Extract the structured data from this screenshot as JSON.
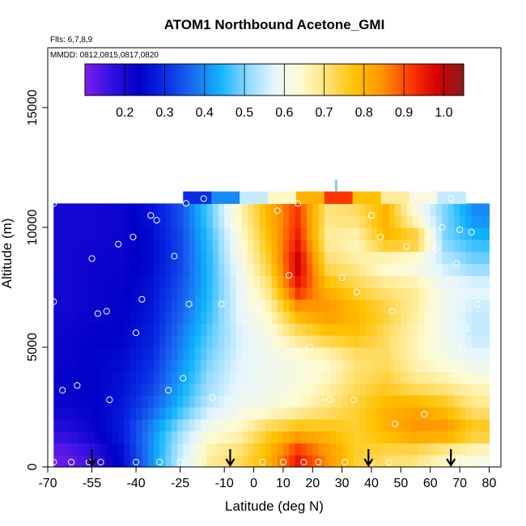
{
  "chart_data": {
    "type": "heatmap",
    "title": "ATOM1 Northbound Acetone_GMI",
    "flights_label": "Flts: 6,7,8,9",
    "dates_label": "MMDD: 0812,0815,0817,0820",
    "xlabel": "Latitude (deg N)",
    "ylabel": "Altitude (m)",
    "xlim": [
      -70,
      84
    ],
    "ylim": [
      0,
      17500
    ],
    "x_ticks": [
      {
        "v": -70,
        "label": "-70"
      },
      {
        "v": -55,
        "label": "-55"
      },
      {
        "v": -40,
        "label": "-40"
      },
      {
        "v": -25,
        "label": "-25"
      },
      {
        "v": -10,
        "label": "-10"
      },
      {
        "v": 0,
        "label": "0"
      },
      {
        "v": 10,
        "label": "10"
      },
      {
        "v": 20,
        "label": "20"
      },
      {
        "v": 30,
        "label": "30"
      },
      {
        "v": 40,
        "label": "40"
      },
      {
        "v": 50,
        "label": "50"
      },
      {
        "v": 60,
        "label": "60"
      },
      {
        "v": 70,
        "label": "70"
      },
      {
        "v": 80,
        "label": "80"
      }
    ],
    "y_ticks": [
      {
        "v": 0,
        "label": "0"
      },
      {
        "v": 5000,
        "label": "5000"
      },
      {
        "v": 10000,
        "label": "10000"
      },
      {
        "v": 15000,
        "label": "15000"
      }
    ],
    "colorbar": {
      "min": 0.1,
      "max": 1.05,
      "colors": [
        "#7d1ff0",
        "#3010e0",
        "#0000c8",
        "#0a2ee6",
        "#1a6cf0",
        "#10b4ff",
        "#8ad8ff",
        "#e6f6ff",
        "#fffbd0",
        "#ffe070",
        "#ffc200",
        "#ff9400",
        "#ff3a00",
        "#d60000",
        "#8b1a1a"
      ],
      "ticks": [
        {
          "v": 0.2,
          "label": "0.2"
        },
        {
          "v": 0.3,
          "label": "0.3"
        },
        {
          "v": 0.4,
          "label": "0.4"
        },
        {
          "v": 0.5,
          "label": "0.5"
        },
        {
          "v": 0.6,
          "label": "0.6"
        },
        {
          "v": 0.7,
          "label": "0.7"
        },
        {
          "v": 0.8,
          "label": "0.8"
        },
        {
          "v": 0.9,
          "label": "0.9"
        },
        {
          "v": 1.0,
          "label": "1.0"
        }
      ]
    },
    "grid": {
      "lat_edges": [
        -68,
        -60,
        -50,
        -40,
        -30,
        -20,
        -10,
        0,
        10,
        20,
        30,
        40,
        50,
        60,
        70,
        80
      ],
      "alt_edges": [
        0,
        1000,
        2000,
        3000,
        4000,
        5000,
        6000,
        7000,
        8000,
        9000,
        10000,
        11000
      ],
      "values": [
        [
          0.12,
          0.16,
          0.25,
          0.4,
          0.55,
          0.68,
          0.72,
          0.8,
          0.95,
          0.85,
          0.75,
          0.72,
          0.7,
          0.65,
          0.62
        ],
        [
          0.18,
          0.22,
          0.28,
          0.4,
          0.52,
          0.62,
          0.66,
          0.75,
          0.8,
          0.78,
          0.75,
          0.8,
          0.85,
          0.85,
          0.78
        ],
        [
          0.22,
          0.23,
          0.27,
          0.35,
          0.45,
          0.55,
          0.6,
          0.62,
          0.65,
          0.7,
          0.75,
          0.8,
          0.82,
          0.78,
          0.7
        ],
        [
          0.23,
          0.24,
          0.26,
          0.32,
          0.42,
          0.52,
          0.58,
          0.6,
          0.62,
          0.66,
          0.72,
          0.75,
          0.7,
          0.68,
          0.65
        ],
        [
          0.22,
          0.24,
          0.25,
          0.3,
          0.4,
          0.5,
          0.57,
          0.6,
          0.62,
          0.64,
          0.7,
          0.72,
          0.66,
          0.62,
          0.58
        ],
        [
          0.22,
          0.23,
          0.24,
          0.28,
          0.38,
          0.48,
          0.56,
          0.62,
          0.7,
          0.76,
          0.78,
          0.72,
          0.66,
          0.6,
          0.55
        ],
        [
          0.21,
          0.22,
          0.23,
          0.27,
          0.36,
          0.46,
          0.58,
          0.65,
          0.82,
          0.85,
          0.8,
          0.75,
          0.68,
          0.6,
          0.55
        ],
        [
          0.21,
          0.22,
          0.23,
          0.26,
          0.34,
          0.45,
          0.58,
          0.7,
          0.95,
          0.8,
          0.74,
          0.7,
          0.68,
          0.6,
          0.58
        ],
        [
          0.21,
          0.22,
          0.22,
          0.25,
          0.33,
          0.45,
          0.6,
          0.75,
          1.0,
          0.72,
          0.68,
          0.62,
          0.6,
          0.55,
          0.5
        ],
        [
          0.21,
          0.21,
          0.22,
          0.25,
          0.33,
          0.46,
          0.62,
          0.78,
          0.95,
          0.68,
          0.65,
          0.8,
          0.78,
          0.5,
          0.45
        ],
        [
          0.21,
          0.21,
          0.22,
          0.26,
          0.34,
          0.48,
          0.65,
          0.8,
          0.92,
          0.7,
          0.72,
          0.8,
          0.62,
          0.5,
          0.4
        ]
      ],
      "top_band": {
        "alt_bottom": 11000,
        "alt_top": 11500,
        "lat_start": -24,
        "lat_end": 72,
        "values": [
          0.3,
          0.4,
          0.55,
          0.65,
          0.8,
          0.92,
          0.78,
          0.68,
          0.62,
          0.55
        ]
      }
    },
    "sample_points": [
      [
        -68,
        11000
      ],
      [
        -65,
        3200
      ],
      [
        -68,
        6900
      ],
      [
        -60,
        3400
      ],
      [
        -55,
        8700
      ],
      [
        -53,
        6400
      ],
      [
        -50,
        6500
      ],
      [
        -49,
        2800
      ],
      [
        -46,
        9300
      ],
      [
        -41,
        9600
      ],
      [
        -40,
        5600
      ],
      [
        -38,
        7000
      ],
      [
        -35,
        10500
      ],
      [
        -33,
        10300
      ],
      [
        -29,
        3200
      ],
      [
        -27,
        8800
      ],
      [
        -24,
        3700
      ],
      [
        -22,
        6800
      ],
      [
        -23,
        11000
      ],
      [
        -17,
        11200
      ],
      [
        -14,
        2900
      ],
      [
        -11,
        6800
      ],
      [
        -7,
        10000
      ],
      [
        -4,
        2200
      ],
      [
        2,
        6700
      ],
      [
        8,
        10700
      ],
      [
        12,
        8000
      ],
      [
        15,
        11000
      ],
      [
        19,
        5000
      ],
      [
        26,
        2800
      ],
      [
        30,
        7900
      ],
      [
        35,
        7300
      ],
      [
        40,
        10500
      ],
      [
        43,
        9600
      ],
      [
        47,
        6500
      ],
      [
        48,
        1800
      ],
      [
        52,
        9200
      ],
      [
        58,
        2200
      ],
      [
        62,
        9100
      ],
      [
        64,
        10000
      ],
      [
        67,
        11200
      ],
      [
        68,
        3900
      ],
      [
        69,
        8500
      ],
      [
        70,
        9900
      ],
      [
        71,
        4900
      ],
      [
        72,
        5800
      ],
      [
        74,
        9800
      ],
      [
        76,
        6800
      ],
      [
        34,
        2800
      ],
      [
        -68,
        200
      ],
      [
        -62,
        200
      ],
      [
        -56,
        200
      ],
      [
        -52,
        200
      ],
      [
        -40,
        200
      ],
      [
        -32,
        200
      ],
      [
        -25,
        200
      ],
      [
        3,
        200
      ],
      [
        10,
        200
      ],
      [
        17,
        200
      ],
      [
        22,
        200
      ],
      [
        31,
        200
      ],
      [
        40,
        200
      ],
      [
        46,
        200
      ],
      [
        72,
        200
      ],
      [
        78,
        200
      ]
    ],
    "arrows": [
      -55,
      -8,
      39,
      67
    ],
    "marker_strip": {
      "lat": 28,
      "alt_bottom": 11500,
      "alt_top": 12000
    }
  }
}
